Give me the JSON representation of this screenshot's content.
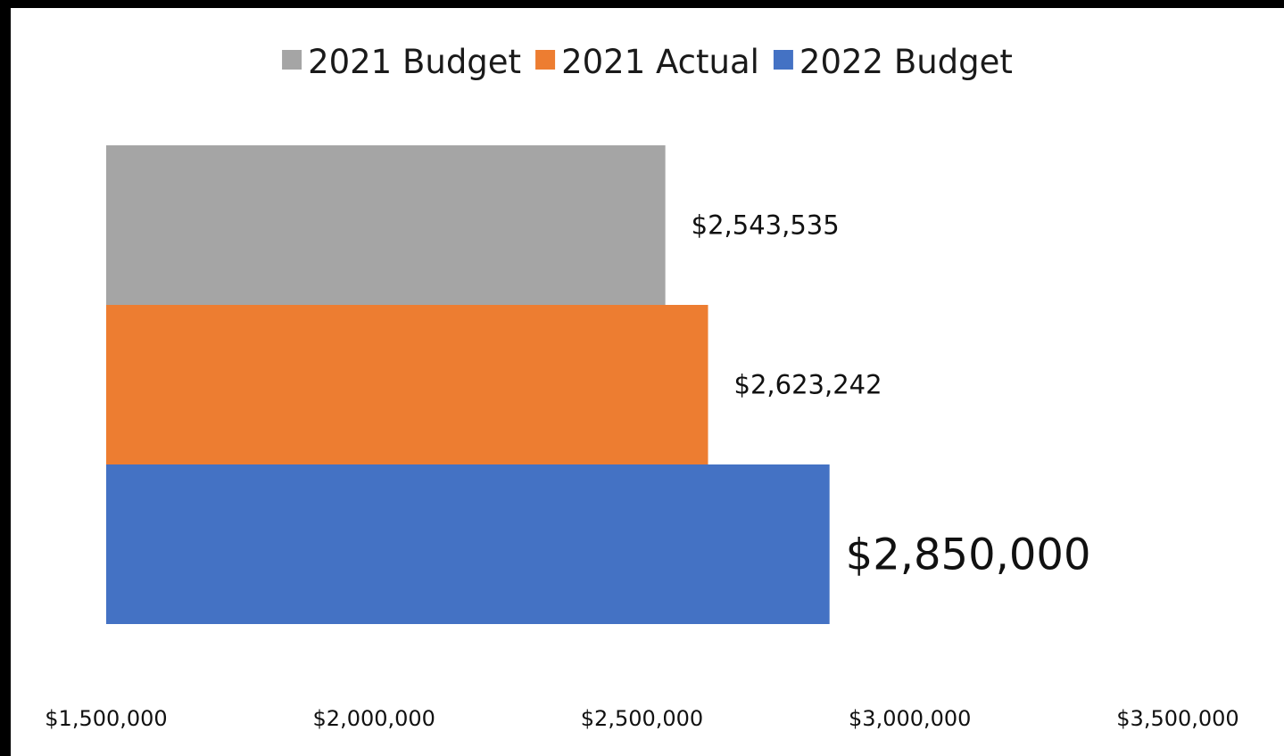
{
  "chart_data": {
    "type": "bar",
    "orientation": "horizontal",
    "series": [
      {
        "name": "2021 Budget",
        "value": 2543535,
        "label": "$2,543,535",
        "color": "#a5a5a5",
        "label_emphasis": false
      },
      {
        "name": "2021 Actual",
        "value": 2623242,
        "label": "$2,623,242",
        "color": "#ed7d31",
        "label_emphasis": false
      },
      {
        "name": "2022 Budget",
        "value": 2850000,
        "label": "$2,850,000",
        "color": "#4472c4",
        "label_emphasis": true
      }
    ],
    "xlim": [
      1500000,
      3500000
    ],
    "x_ticks": [
      {
        "value": 1500000,
        "label": "$1,500,000"
      },
      {
        "value": 2000000,
        "label": "$2,000,000"
      },
      {
        "value": 2500000,
        "label": "$2,500,000"
      },
      {
        "value": 3000000,
        "label": "$3,000,000"
      },
      {
        "value": 3500000,
        "label": "$3,500,000"
      }
    ],
    "legend_position": "top",
    "grid": false,
    "title": "",
    "xlabel": "",
    "ylabel": ""
  }
}
